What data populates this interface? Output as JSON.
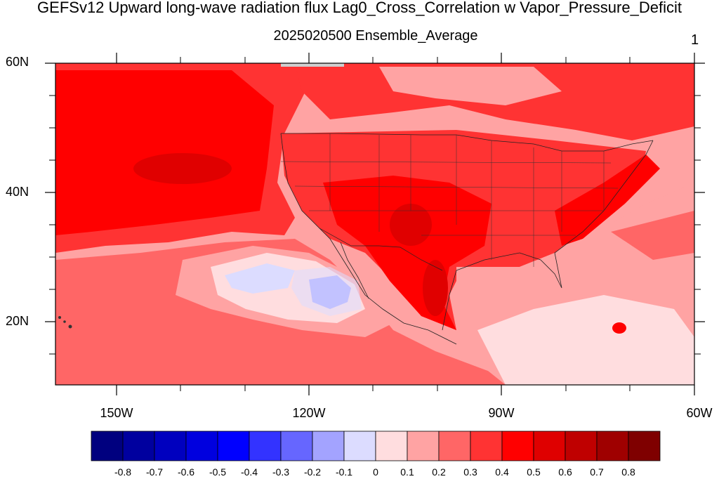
{
  "figure": {
    "title": "GEFSv12 Upward long-wave radiation flux Lag0_Cross_Correlation w Vapor_Pressure_Deficit",
    "subtitle": "2025020500 Ensemble_Average",
    "page_number": "1"
  },
  "map": {
    "lat_labels": [
      "60N",
      "40N",
      "20N"
    ],
    "lon_labels": [
      "150W",
      "120W",
      "90W",
      "60W"
    ],
    "field": "Lag0 cross correlation"
  },
  "colorbar": {
    "labels": [
      "-0.8",
      "-0.7",
      "-0.6",
      "-0.5",
      "-0.4",
      "-0.3",
      "-0.2",
      "-0.1",
      "0",
      "0.1",
      "0.2",
      "0.3",
      "0.4",
      "0.5",
      "0.6",
      "0.7",
      "0.8"
    ],
    "colors": [
      "#00007f",
      "#00009f",
      "#0000bf",
      "#0000df",
      "#0000ff",
      "#3333ff",
      "#6666ff",
      "#a3a3ff",
      "#dcdcff",
      "#ffdddf",
      "#ffa3a3",
      "#ff6666",
      "#ff3333",
      "#ff0000",
      "#df0000",
      "#bf0000",
      "#9f0000",
      "#7f0000"
    ]
  },
  "colors": {
    "strong_red": "#e00000",
    "red": "#ff0000",
    "mid_red": "#ff3333",
    "light_red": "#ff6666",
    "pink": "#ffa3a3",
    "pale_pink": "#ffdddf",
    "pale_blue": "#dcdcff",
    "light_blue": "#a3a3ff",
    "land_missing": "#cfcfcf"
  }
}
